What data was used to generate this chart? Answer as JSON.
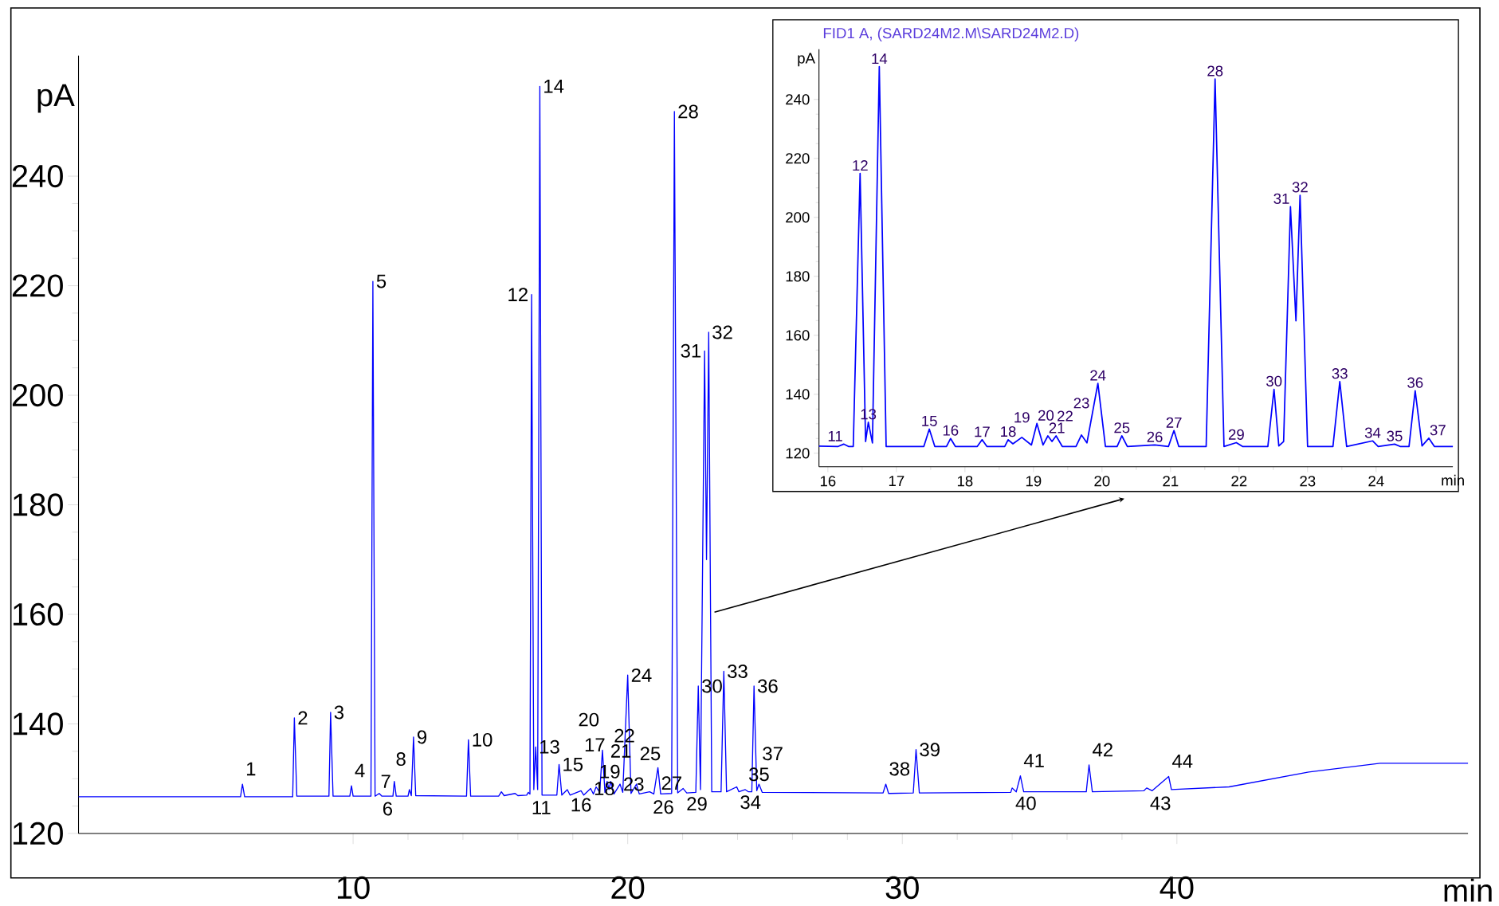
{
  "chart_data": [
    {
      "type": "line",
      "xlabel": "min",
      "ylabel": "pA",
      "xlim": [
        0,
        50.6
      ],
      "ylim": [
        120,
        262
      ],
      "xticks": [
        10,
        20,
        30,
        40
      ],
      "yticks": [
        120,
        140,
        160,
        180,
        200,
        220,
        240
      ],
      "series": [
        {
          "color": "#0000ff",
          "x": [
            0,
            5.9,
            5.97,
            6.05,
            7.8,
            7.86,
            7.95,
            9.12,
            9.18,
            9.27,
            9.88,
            9.94,
            10.0,
            10.65,
            10.72,
            10.8,
            10.95,
            11.05,
            11.45,
            11.5,
            11.57,
            12.0,
            12.05,
            12.12,
            12.2,
            12.28,
            14.13,
            14.2,
            14.28,
            15.3,
            15.4,
            15.5,
            15.9,
            16.0,
            16.32,
            16.38,
            16.44,
            16.5,
            16.58,
            16.65,
            16.72,
            16.8,
            16.88,
            17.42,
            17.5,
            17.6,
            17.8,
            17.9,
            18.3,
            18.4,
            18.65,
            18.75,
            18.85,
            18.98,
            19.08,
            19.17,
            19.25,
            19.32,
            19.38,
            19.5,
            19.72,
            19.82,
            20.0,
            20.12,
            20.32,
            20.42,
            20.8,
            20.95,
            21.1,
            21.2,
            21.6,
            21.7,
            21.82,
            22.02,
            22.15,
            22.48,
            22.57,
            22.65,
            22.8,
            22.87,
            22.95,
            23.06,
            23.4,
            23.5,
            23.6,
            23.97,
            24.05,
            24.28,
            24.4,
            24.52,
            24.6,
            24.7,
            24.78,
            24.9,
            29.3,
            29.4,
            29.5,
            30.4,
            30.5,
            30.62,
            33.95,
            34.0,
            34.15,
            34.3,
            34.42,
            36.7,
            36.8,
            36.92,
            38.8,
            38.9,
            39.1,
            39.7,
            39.8,
            41.9,
            44.8,
            47.4,
            50.6
          ],
          "values": [
            126.7,
            126.7,
            129.0,
            126.7,
            126.7,
            141.1,
            126.8,
            126.8,
            142.1,
            126.8,
            126.8,
            128.7,
            126.8,
            126.8,
            220.8,
            126.8,
            127.3,
            126.8,
            126.8,
            129.5,
            126.8,
            126.8,
            128.0,
            126.9,
            137.6,
            126.9,
            126.8,
            137.1,
            126.8,
            126.8,
            127.6,
            126.9,
            127.3,
            126.9,
            127.0,
            127.5,
            127.2,
            218.4,
            128.0,
            135.8,
            128.0,
            256.4,
            127.0,
            127.0,
            132.6,
            127.0,
            128.0,
            127.0,
            127.8,
            127.0,
            128.2,
            127.2,
            128.5,
            127.5,
            135.2,
            127.5,
            129.5,
            128.0,
            129.5,
            127.2,
            129.0,
            127.5,
            148.9,
            127.3,
            129.0,
            127.2,
            127.6,
            127.2,
            132.0,
            127.2,
            127.3,
            251.8,
            127.4,
            128.2,
            127.4,
            127.5,
            146.9,
            128.0,
            208.1,
            170.0,
            211.5,
            127.6,
            127.6,
            149.6,
            127.6,
            128.5,
            127.6,
            128.0,
            127.6,
            127.6,
            146.9,
            127.8,
            129.0,
            127.5,
            127.4,
            129.0,
            127.3,
            127.4,
            135.3,
            127.4,
            127.5,
            128.3,
            127.6,
            130.5,
            127.6,
            127.6,
            132.5,
            127.6,
            127.8,
            128.3,
            127.8,
            130.4,
            128.0,
            128.5,
            131.2,
            132.8,
            132.8
          ]
        }
      ],
      "annotations": [
        {
          "text": "1",
          "x": 5.97,
          "y": 129.0
        },
        {
          "text": "2",
          "x": 7.86,
          "y": 141.1
        },
        {
          "text": "3",
          "x": 9.18,
          "y": 142.1
        },
        {
          "text": "4",
          "x": 9.94,
          "y": 128.7
        },
        {
          "text": "5",
          "x": 10.72,
          "y": 220.8
        },
        {
          "text": "6",
          "x": 10.95,
          "y": 127.3
        },
        {
          "text": "7",
          "x": 11.5,
          "y": 129.5
        },
        {
          "text": "8",
          "x": 12.05,
          "y": 128.0
        },
        {
          "text": "9",
          "x": 12.2,
          "y": 137.6
        },
        {
          "text": "10",
          "x": 14.2,
          "y": 137.1
        },
        {
          "text": "11",
          "x": 16.38,
          "y": 127.5
        },
        {
          "text": "12",
          "x": 16.5,
          "y": 218.4
        },
        {
          "text": "13",
          "x": 16.65,
          "y": 135.8
        },
        {
          "text": "14",
          "x": 16.8,
          "y": 256.4
        },
        {
          "text": "15",
          "x": 17.5,
          "y": 132.6
        },
        {
          "text": "16",
          "x": 17.8,
          "y": 128.0
        },
        {
          "text": "17",
          "x": 18.3,
          "y": 127.8
        },
        {
          "text": "18",
          "x": 18.65,
          "y": 128.2
        },
        {
          "text": "19",
          "x": 18.85,
          "y": 128.5
        },
        {
          "text": "20",
          "x": 19.08,
          "y": 135.2
        },
        {
          "text": "21",
          "x": 19.25,
          "y": 129.5
        },
        {
          "text": "22",
          "x": 19.38,
          "y": 129.5
        },
        {
          "text": "23",
          "x": 19.72,
          "y": 129.0
        },
        {
          "text": "24",
          "x": 20.0,
          "y": 148.9
        },
        {
          "text": "25",
          "x": 20.32,
          "y": 129.0
        },
        {
          "text": "26",
          "x": 20.8,
          "y": 127.6
        },
        {
          "text": "27",
          "x": 21.1,
          "y": 132.0
        },
        {
          "text": "28",
          "x": 21.7,
          "y": 251.8
        },
        {
          "text": "29",
          "x": 22.02,
          "y": 128.2
        },
        {
          "text": "30",
          "x": 22.57,
          "y": 146.9
        },
        {
          "text": "31",
          "x": 22.8,
          "y": 208.1
        },
        {
          "text": "32",
          "x": 22.95,
          "y": 211.5
        },
        {
          "text": "33",
          "x": 23.5,
          "y": 149.6
        },
        {
          "text": "34",
          "x": 23.97,
          "y": 128.5
        },
        {
          "text": "35",
          "x": 24.28,
          "y": 128.0
        },
        {
          "text": "36",
          "x": 24.6,
          "y": 146.9
        },
        {
          "text": "37",
          "x": 24.78,
          "y": 129.0
        },
        {
          "text": "38",
          "x": 29.4,
          "y": 129.0
        },
        {
          "text": "39",
          "x": 30.5,
          "y": 135.3
        },
        {
          "text": "40",
          "x": 34.0,
          "y": 128.3
        },
        {
          "text": "41",
          "x": 34.3,
          "y": 130.5
        },
        {
          "text": "42",
          "x": 36.8,
          "y": 132.5
        },
        {
          "text": "43",
          "x": 38.9,
          "y": 128.3
        },
        {
          "text": "44",
          "x": 39.7,
          "y": 130.4
        }
      ]
    },
    {
      "type": "line",
      "title": "FID1 A, (SARD24M2.M\\SARD24M2.D)",
      "xlabel": "min",
      "ylabel": "pA",
      "xlim": [
        15.87,
        25.12
      ],
      "ylim": [
        115.4,
        257
      ],
      "xticks": [
        16,
        17,
        18,
        19,
        20,
        21,
        22,
        23,
        24
      ],
      "yticks": [
        120,
        140,
        160,
        180,
        200,
        220,
        240
      ],
      "series": [
        {
          "color": "#0000ff",
          "x": [
            15.87,
            16.15,
            16.23,
            16.3,
            16.37,
            16.47,
            16.55,
            16.59,
            16.65,
            16.75,
            16.85,
            17.4,
            17.48,
            17.56,
            17.73,
            17.79,
            17.86,
            18.18,
            18.25,
            18.32,
            18.58,
            18.63,
            18.7,
            18.83,
            18.97,
            19.05,
            19.14,
            19.21,
            19.27,
            19.33,
            19.42,
            19.62,
            19.7,
            19.78,
            19.94,
            20.05,
            20.22,
            20.29,
            20.37,
            20.77,
            20.97,
            21.05,
            21.12,
            21.52,
            21.65,
            21.78,
            21.96,
            22.05,
            22.42,
            22.51,
            22.58,
            22.65,
            22.75,
            22.83,
            22.89,
            23.0,
            23.37,
            23.47,
            23.57,
            23.95,
            24.03,
            24.27,
            24.35,
            24.48,
            24.57,
            24.67,
            24.77,
            24.85,
            25.12
          ],
          "values": [
            122.4,
            122.3,
            123.1,
            122.3,
            122.3,
            214.9,
            124.0,
            130.5,
            123.5,
            251.1,
            122.3,
            122.3,
            128.2,
            122.3,
            122.3,
            125.0,
            122.3,
            122.3,
            124.6,
            122.3,
            122.3,
            124.6,
            123.2,
            125.4,
            122.8,
            130.1,
            122.8,
            125.9,
            124.0,
            125.9,
            122.3,
            122.3,
            126.2,
            123.5,
            143.7,
            122.3,
            122.3,
            125.9,
            122.3,
            122.8,
            122.3,
            127.7,
            122.3,
            122.3,
            246.9,
            122.3,
            123.6,
            122.3,
            122.3,
            141.7,
            122.5,
            124.0,
            203.6,
            164.9,
            207.5,
            122.3,
            122.3,
            144.3,
            122.3,
            124.2,
            122.3,
            123.1,
            122.3,
            122.3,
            141.2,
            122.5,
            125.1,
            122.3,
            122.3
          ]
        }
      ],
      "annotations": [
        {
          "text": "11",
          "x": 16.23,
          "y": 123.1
        },
        {
          "text": "12",
          "x": 16.47,
          "y": 214.9
        },
        {
          "text": "13",
          "x": 16.59,
          "y": 130.5
        },
        {
          "text": "14",
          "x": 16.75,
          "y": 251.1
        },
        {
          "text": "15",
          "x": 17.48,
          "y": 128.2
        },
        {
          "text": "16",
          "x": 17.79,
          "y": 125.0
        },
        {
          "text": "17",
          "x": 18.25,
          "y": 124.6
        },
        {
          "text": "18",
          "x": 18.63,
          "y": 124.6
        },
        {
          "text": "19",
          "x": 18.83,
          "y": 125.4
        },
        {
          "text": "20",
          "x": 19.05,
          "y": 130.1
        },
        {
          "text": "21",
          "x": 19.21,
          "y": 125.9
        },
        {
          "text": "22",
          "x": 19.33,
          "y": 125.9
        },
        {
          "text": "23",
          "x": 19.7,
          "y": 126.2
        },
        {
          "text": "24",
          "x": 19.94,
          "y": 143.7
        },
        {
          "text": "25",
          "x": 20.29,
          "y": 125.9
        },
        {
          "text": "26",
          "x": 20.77,
          "y": 122.8
        },
        {
          "text": "27",
          "x": 21.05,
          "y": 127.7
        },
        {
          "text": "28",
          "x": 21.65,
          "y": 246.9
        },
        {
          "text": "29",
          "x": 21.96,
          "y": 123.6
        },
        {
          "text": "30",
          "x": 22.51,
          "y": 141.7
        },
        {
          "text": "31",
          "x": 22.75,
          "y": 203.6
        },
        {
          "text": "32",
          "x": 22.89,
          "y": 207.5
        },
        {
          "text": "33",
          "x": 23.47,
          "y": 144.3
        },
        {
          "text": "34",
          "x": 23.95,
          "y": 124.2
        },
        {
          "text": "35",
          "x": 24.27,
          "y": 123.1
        },
        {
          "text": "36",
          "x": 24.57,
          "y": 141.2
        },
        {
          "text": "37",
          "x": 24.77,
          "y": 125.1
        }
      ]
    }
  ]
}
